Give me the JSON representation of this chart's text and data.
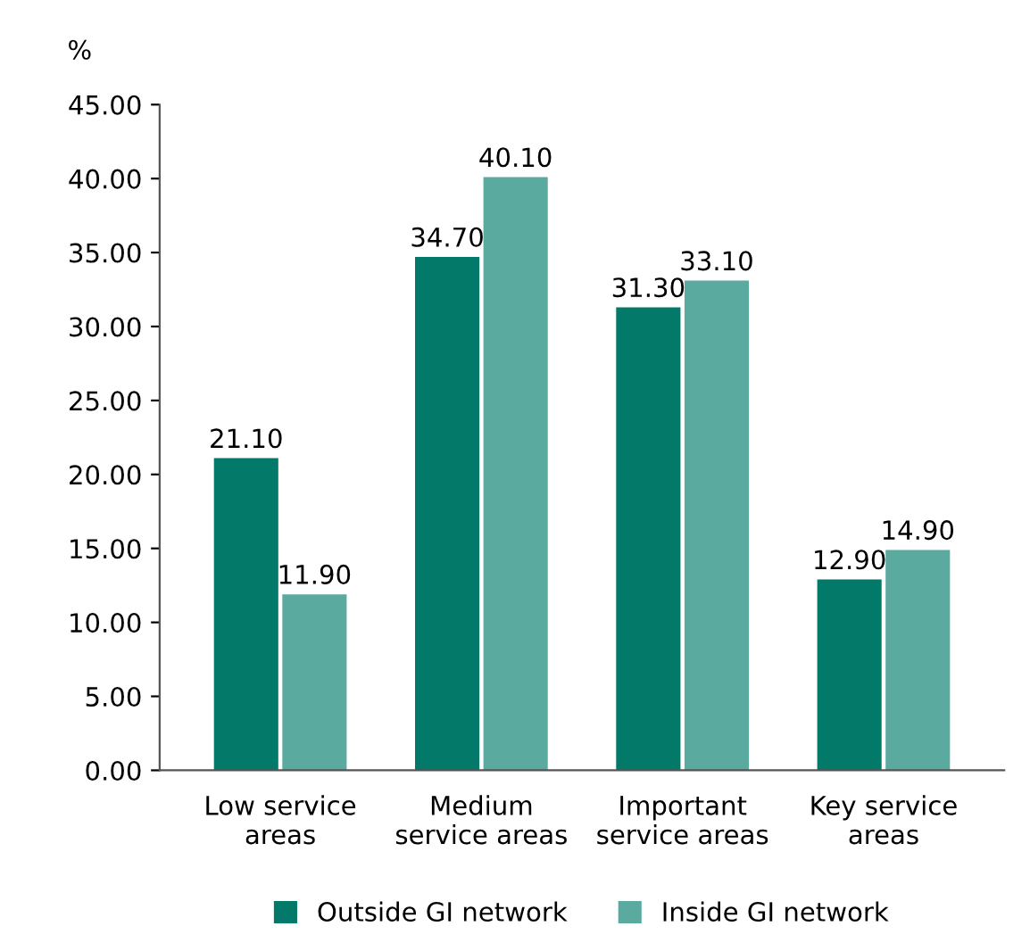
{
  "chart_data": {
    "type": "bar",
    "ylabel": "%",
    "categories": [
      "Low service\nareas",
      "Medium\nservice areas",
      "Important\nservice areas",
      "Key service\nareas"
    ],
    "series": [
      {
        "name": "Outside GI network",
        "color": "#03796a",
        "values": [
          21.1,
          34.7,
          31.3,
          12.9
        ],
        "value_labels": [
          "21.10",
          "34.70",
          "31.30",
          "12.90"
        ]
      },
      {
        "name": "Inside GI network",
        "color": "#5aaa9f",
        "values": [
          11.9,
          40.1,
          33.1,
          14.9
        ],
        "value_labels": [
          "11.90",
          "40.10",
          "33.10",
          "14.90"
        ]
      }
    ],
    "ylim": [
      0,
      45
    ],
    "yticks": [
      {
        "value": 0,
        "label": "0.00"
      },
      {
        "value": 5,
        "label": "5.00"
      },
      {
        "value": 10,
        "label": "10.00"
      },
      {
        "value": 15,
        "label": "15.00"
      },
      {
        "value": 20,
        "label": "20.00"
      },
      {
        "value": 25,
        "label": "25.00"
      },
      {
        "value": 30,
        "label": "30.00"
      },
      {
        "value": 35,
        "label": "35.00"
      },
      {
        "value": 40,
        "label": "40.00"
      },
      {
        "value": 45,
        "label": "45.00"
      }
    ],
    "grid": false,
    "legend": "bottom"
  }
}
